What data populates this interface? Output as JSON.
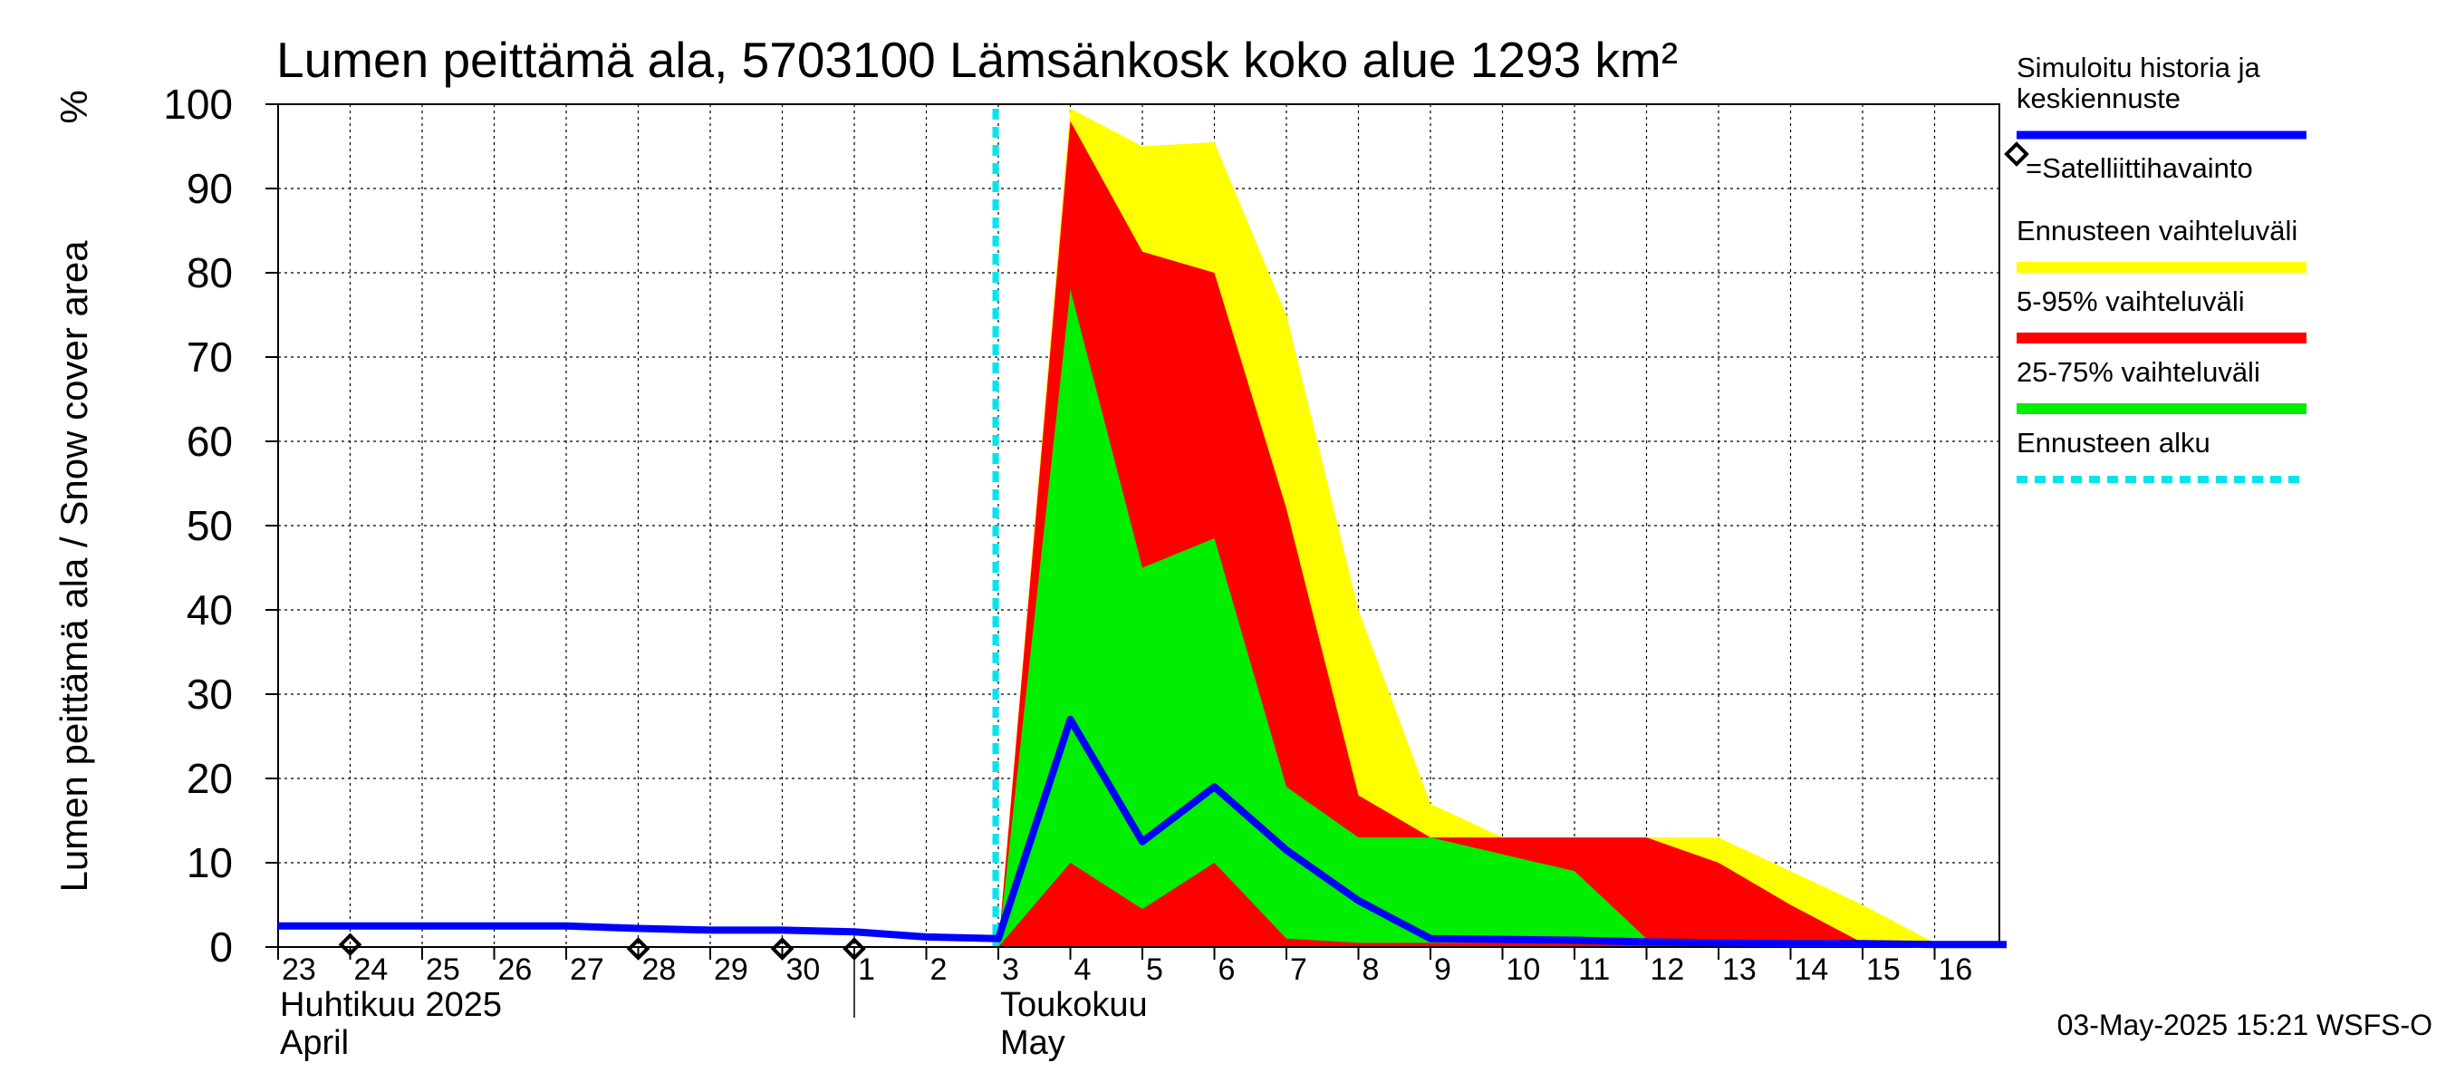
{
  "chart_data": {
    "type": "area",
    "title": "Lumen peittämä ala, 5703100 Lämsänkosk koko alue 1293 km²",
    "ylabel": "Lumen peittämä ala / Snow cover area",
    "yunit": "%",
    "ylim": [
      0,
      100
    ],
    "yticks": [
      0,
      10,
      20,
      30,
      40,
      50,
      60,
      70,
      80,
      90,
      100
    ],
    "x_range": [
      "2025-04-23",
      "2025-05-17"
    ],
    "x_ticks": [
      {
        "date": "2025-04-23",
        "label": "23"
      },
      {
        "date": "2025-04-24",
        "label": "24"
      },
      {
        "date": "2025-04-25",
        "label": "25"
      },
      {
        "date": "2025-04-26",
        "label": "26"
      },
      {
        "date": "2025-04-27",
        "label": "27"
      },
      {
        "date": "2025-04-28",
        "label": "28"
      },
      {
        "date": "2025-04-29",
        "label": "29"
      },
      {
        "date": "2025-04-30",
        "label": "30"
      },
      {
        "date": "2025-05-01",
        "label": "1"
      },
      {
        "date": "2025-05-02",
        "label": "2"
      },
      {
        "date": "2025-05-03",
        "label": "3"
      },
      {
        "date": "2025-05-04",
        "label": "4"
      },
      {
        "date": "2025-05-05",
        "label": "5"
      },
      {
        "date": "2025-05-06",
        "label": "6"
      },
      {
        "date": "2025-05-07",
        "label": "7"
      },
      {
        "date": "2025-05-08",
        "label": "8"
      },
      {
        "date": "2025-05-09",
        "label": "9"
      },
      {
        "date": "2025-05-10",
        "label": "10"
      },
      {
        "date": "2025-05-11",
        "label": "11"
      },
      {
        "date": "2025-05-12",
        "label": "12"
      },
      {
        "date": "2025-05-13",
        "label": "13"
      },
      {
        "date": "2025-05-14",
        "label": "14"
      },
      {
        "date": "2025-05-15",
        "label": "15"
      },
      {
        "date": "2025-05-16",
        "label": "16"
      }
    ],
    "month_labels": [
      {
        "date": "2025-04-23",
        "lines": [
          "Huhtikuu  2025",
          "April"
        ]
      },
      {
        "date": "2025-05-03",
        "lines": [
          "Toukokuu",
          "May"
        ]
      }
    ],
    "month_separator_date": "2025-05-01",
    "grid": true,
    "legend_position": "right",
    "forecast_start": "2025-05-03",
    "bands": [
      {
        "name": "Ennusteen vaihteluväli",
        "color": "#ffff00",
        "x": [
          "2025-05-03",
          "2025-05-04",
          "2025-05-05",
          "2025-05-06",
          "2025-05-07",
          "2025-05-08",
          "2025-05-09",
          "2025-05-10",
          "2025-05-11",
          "2025-05-12",
          "2025-05-13",
          "2025-05-14",
          "2025-05-15",
          "2025-05-16",
          "2025-05-17"
        ],
        "upper": [
          0,
          99.5,
          95,
          95.5,
          75,
          40,
          17,
          13,
          13,
          13,
          13,
          9,
          5,
          0.5,
          0.5
        ],
        "lower": [
          0,
          0,
          0,
          0,
          0,
          0,
          0,
          0,
          0,
          0,
          0,
          0,
          0,
          0,
          0
        ]
      },
      {
        "name": "5-95% vaihteluväli",
        "color": "#ff0000",
        "x": [
          "2025-05-03",
          "2025-05-04",
          "2025-05-05",
          "2025-05-06",
          "2025-05-07",
          "2025-05-08",
          "2025-05-09",
          "2025-05-10",
          "2025-05-11",
          "2025-05-12",
          "2025-05-13",
          "2025-05-14",
          "2025-05-15",
          "2025-05-16",
          "2025-05-17"
        ],
        "upper": [
          0,
          98,
          82.5,
          80,
          52,
          18,
          13,
          13,
          13,
          13,
          10,
          5,
          0.5,
          0.5,
          0.5
        ],
        "lower": [
          0,
          0,
          0,
          0,
          0,
          0,
          0,
          0,
          0,
          0,
          0,
          0,
          0,
          0,
          0
        ]
      },
      {
        "name": "25-75% vaihteluväli",
        "color": "#00ee00",
        "x": [
          "2025-05-03",
          "2025-05-04",
          "2025-05-05",
          "2025-05-06",
          "2025-05-07",
          "2025-05-08",
          "2025-05-09",
          "2025-05-10",
          "2025-05-11",
          "2025-05-12",
          "2025-05-13",
          "2025-05-14",
          "2025-05-15",
          "2025-05-16",
          "2025-05-17"
        ],
        "upper": [
          0,
          78,
          45,
          48.5,
          19,
          13,
          13,
          11,
          9,
          1,
          0.5,
          0.5,
          0.5,
          0.5,
          0.5
        ],
        "lower": [
          0,
          10,
          4.5,
          10,
          1,
          0.5,
          0.5,
          0.5,
          0.5,
          0.5,
          0.5,
          0.5,
          0.5,
          0.5,
          0.5
        ]
      }
    ],
    "series": [
      {
        "name": "Simuloitu historia ja keskiennuste",
        "color": "#0000ff",
        "x": [
          "2025-04-23",
          "2025-04-24",
          "2025-04-25",
          "2025-04-26",
          "2025-04-27",
          "2025-04-28",
          "2025-04-29",
          "2025-04-30",
          "2025-05-01",
          "2025-05-02",
          "2025-05-03",
          "2025-05-04",
          "2025-05-05",
          "2025-05-06",
          "2025-05-07",
          "2025-05-08",
          "2025-05-09",
          "2025-05-10",
          "2025-05-11",
          "2025-05-12",
          "2025-05-13",
          "2025-05-14",
          "2025-05-15",
          "2025-05-16",
          "2025-05-17"
        ],
        "y": [
          2.5,
          2.5,
          2.5,
          2.5,
          2.5,
          2.2,
          2.0,
          2.0,
          1.8,
          1.2,
          1.0,
          27,
          12.5,
          19,
          11.5,
          5.5,
          1.0,
          0.9,
          0.8,
          0.6,
          0.5,
          0.4,
          0.4,
          0.3,
          0.3
        ]
      }
    ],
    "satellite_observations": {
      "name": "=Satelliittihavainto",
      "x": [
        "2025-04-24",
        "2025-04-28",
        "2025-04-30",
        "2025-05-01"
      ],
      "y": [
        0.5,
        0,
        0,
        0
      ]
    },
    "legend": [
      {
        "label_lines": [
          "Simuloitu historia ja",
          "keskiennuste"
        ],
        "color": "#0000ff",
        "style": "line"
      },
      {
        "label_lines": [
          "=Satelliittihavainto"
        ],
        "color": "#000000",
        "style": "diamond"
      },
      {
        "label_lines": [
          "Ennusteen vaihteluväli"
        ],
        "color": "#ffff00",
        "style": "band"
      },
      {
        "label_lines": [
          "5-95% vaihteluväli"
        ],
        "color": "#ff0000",
        "style": "band"
      },
      {
        "label_lines": [
          "25-75% vaihteluväli"
        ],
        "color": "#00ee00",
        "style": "band"
      },
      {
        "label_lines": [
          "Ennusteen alku"
        ],
        "color": "#00e5ee",
        "style": "dashed"
      }
    ],
    "footer": "03-May-2025 15:21 WSFS-O"
  }
}
